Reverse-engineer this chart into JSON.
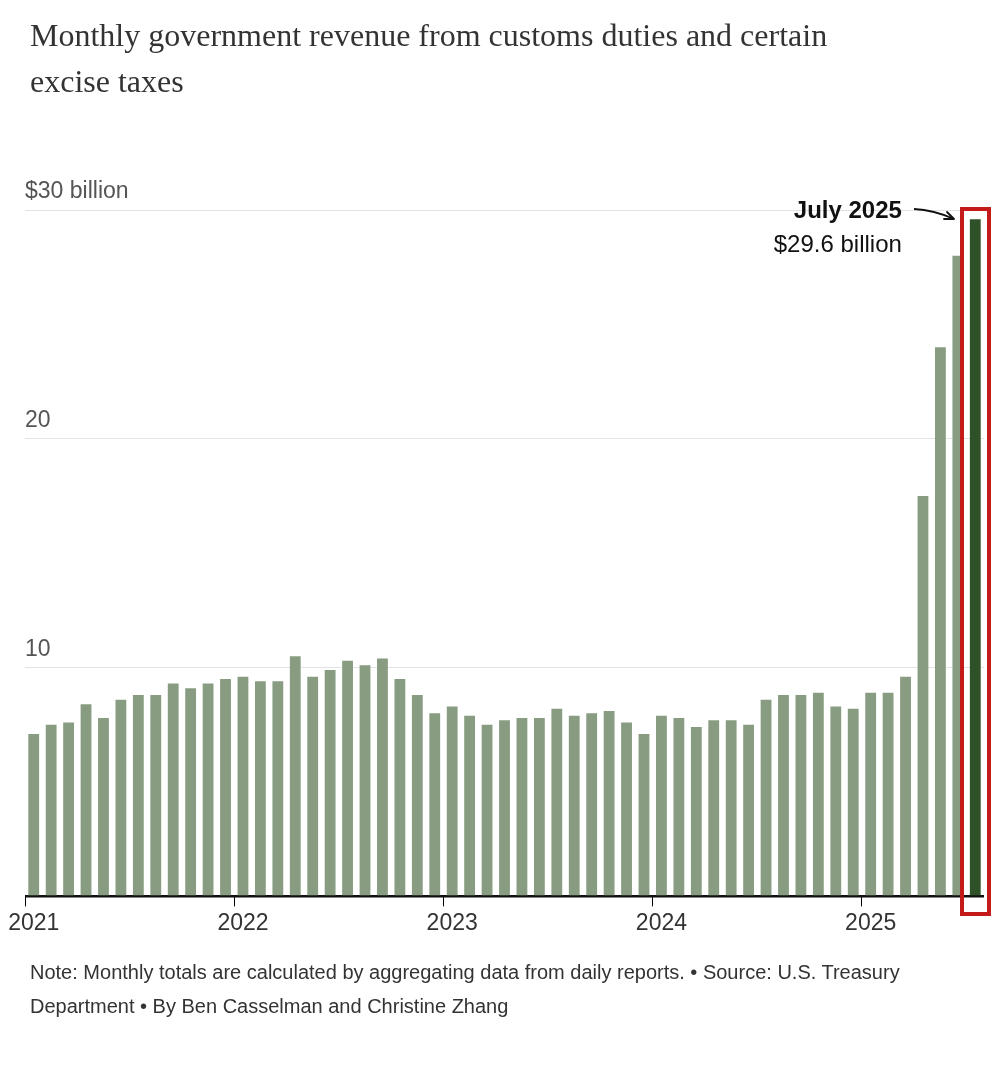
{
  "chart_data": {
    "type": "bar",
    "title": "Monthly government revenue from customs duties and certain excise taxes",
    "categories": [
      "2021",
      null,
      null,
      null,
      null,
      null,
      null,
      null,
      null,
      null,
      null,
      null,
      "2022",
      null,
      null,
      null,
      null,
      null,
      null,
      null,
      null,
      null,
      null,
      null,
      "2023",
      null,
      null,
      null,
      null,
      null,
      null,
      null,
      null,
      null,
      null,
      null,
      "2024",
      null,
      null,
      null,
      null,
      null,
      null,
      null,
      null,
      null,
      null,
      null,
      "2025",
      null,
      null,
      null,
      null,
      null,
      null
    ],
    "values": [
      7.1,
      7.5,
      7.6,
      8.4,
      7.8,
      8.6,
      8.8,
      8.8,
      9.3,
      9.1,
      9.3,
      9.5,
      9.6,
      9.4,
      9.4,
      10.5,
      9.6,
      9.9,
      10.3,
      10.1,
      10.4,
      9.5,
      8.8,
      8.0,
      8.3,
      7.9,
      7.5,
      7.7,
      7.8,
      7.8,
      8.2,
      7.9,
      8.0,
      8.1,
      7.6,
      7.1,
      7.9,
      7.8,
      7.4,
      7.7,
      7.7,
      7.5,
      8.6,
      8.8,
      8.8,
      8.9,
      8.3,
      8.2,
      8.9,
      8.9,
      9.6,
      17.5,
      24.0,
      28.0,
      29.6
    ],
    "colors": [
      "#879c80",
      "#879c80",
      "#879c80",
      "#879c80",
      "#879c80",
      "#879c80",
      "#879c80",
      "#879c80",
      "#879c80",
      "#879c80",
      "#879c80",
      "#879c80",
      "#879c80",
      "#879c80",
      "#879c80",
      "#879c80",
      "#879c80",
      "#879c80",
      "#879c80",
      "#879c80",
      "#879c80",
      "#879c80",
      "#879c80",
      "#879c80",
      "#879c80",
      "#879c80",
      "#879c80",
      "#879c80",
      "#879c80",
      "#879c80",
      "#879c80",
      "#879c80",
      "#879c80",
      "#879c80",
      "#879c80",
      "#879c80",
      "#879c80",
      "#879c80",
      "#879c80",
      "#879c80",
      "#879c80",
      "#879c80",
      "#879c80",
      "#879c80",
      "#879c80",
      "#879c80",
      "#879c80",
      "#879c80",
      "#879c80",
      "#879c80",
      "#879c80",
      "#879c80",
      "#879c80",
      "#879c80",
      "#2f5128"
    ],
    "ylim": [
      0,
      30
    ],
    "yticks": [
      {
        "value": 0,
        "label": null
      },
      {
        "value": 10,
        "label": "10"
      },
      {
        "value": 20,
        "label": "20"
      },
      {
        "value": 30,
        "label": "$30 billion"
      }
    ],
    "grid": "y",
    "legend": false,
    "annotations": [
      "July 2025\n$29.6 billion",
      "Note: Monthly totals are calculated by aggregating data from daily reports. • Source: U.S. Treasury Department • By Ben Casselman and Christine Zhang"
    ]
  }
}
